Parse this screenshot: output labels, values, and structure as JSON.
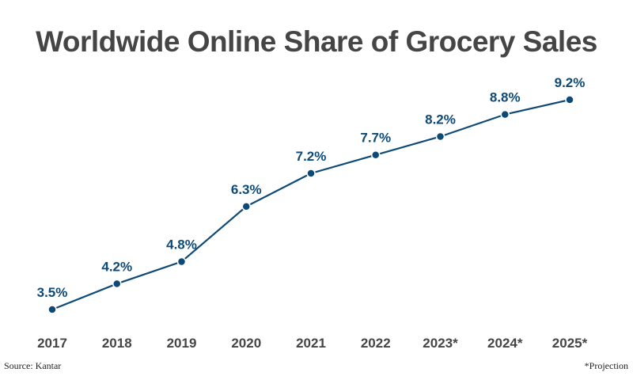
{
  "chart_data": {
    "type": "line",
    "title": "Worldwide Online Share of Grocery Sales",
    "categories": [
      "2017",
      "2018",
      "2019",
      "2020",
      "2021",
      "2022",
      "2023*",
      "2024*",
      "2025*"
    ],
    "values": [
      3.5,
      4.2,
      4.8,
      6.3,
      7.2,
      7.7,
      8.2,
      8.8,
      9.2
    ],
    "data_labels": [
      "3.5%",
      "4.2%",
      "4.8%",
      "6.3%",
      "7.2%",
      "7.7%",
      "8.2%",
      "8.8%",
      "9.2%"
    ],
    "xlabel": "",
    "ylabel": "",
    "grid": false,
    "y_axis_visible": false,
    "line_color": "#0d4a78",
    "label_color": "#0d4a78",
    "tick_color": "#454545"
  },
  "footer": {
    "source": "Source: Kantar",
    "note": "*Projection"
  }
}
